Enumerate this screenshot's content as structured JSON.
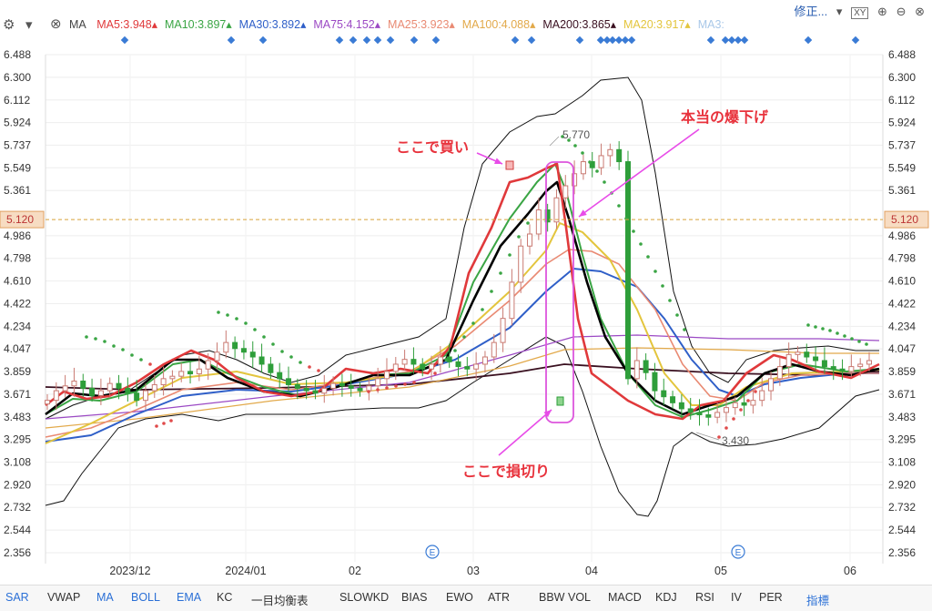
{
  "toolbar": {
    "indicator_name": "MA",
    "ma_legend": [
      {
        "label": "MA5:3.948",
        "color": "#e0393b"
      },
      {
        "label": "MA10:3.897",
        "color": "#3aa544"
      },
      {
        "label": "MA30:3.892",
        "color": "#2f5fc8"
      },
      {
        "label": "MA75:4.152",
        "color": "#9b49c4"
      },
      {
        "label": "MA25:3.923",
        "color": "#e98a73"
      },
      {
        "label": "MA100:4.088",
        "color": "#e2a94a"
      },
      {
        "label": "MA200:3.865",
        "color": "#3a1020"
      },
      {
        "label": "MA20:3.917",
        "color": "#e3c53d"
      },
      {
        "label": "MA3:",
        "color": "#a9c8e8"
      }
    ],
    "modify_label": "修正...",
    "gear_icon": "gear-icon",
    "collapse_icon": "chevron-down-icon",
    "close_icon": "close-icon"
  },
  "bottom_tabs": [
    "SAR",
    "VWAP",
    "MA",
    "BOLL",
    "EMA",
    "KC",
    "一目均衡表",
    "SLOWKD",
    "BIAS",
    "EWO",
    "ATR",
    "BBW",
    "VOL",
    "MACD",
    "KDJ",
    "RSI",
    "IV",
    "PER",
    "指標"
  ],
  "active_tabs": [
    "SAR",
    "MA",
    "BOLL",
    "EMA",
    "指標"
  ],
  "chart_data": {
    "type": "candlestick",
    "y_ticks": [
      2.356,
      2.544,
      2.732,
      2.92,
      3.108,
      3.295,
      3.483,
      3.671,
      3.859,
      4.047,
      4.234,
      4.422,
      4.61,
      4.798,
      4.986,
      5.361,
      5.549,
      5.737,
      5.924,
      6.112,
      6.3,
      6.488
    ],
    "ylim": [
      2.356,
      6.488
    ],
    "x_labels": [
      "2023/12",
      "2024/01",
      "02",
      "03",
      "04",
      "05",
      "06"
    ],
    "current_price": 5.12,
    "current_price_label": "5.120",
    "high_label": "5.770",
    "low_label": "3.430",
    "event_marker": "E",
    "annotations": [
      {
        "text": "ここで買い",
        "color": "#e8323c"
      },
      {
        "text": "本当の爆下げ",
        "color": "#e8323c"
      },
      {
        "text": "ここで損切り",
        "color": "#e8323c"
      }
    ],
    "series_close": [
      3.62,
      3.7,
      3.74,
      3.78,
      3.72,
      3.66,
      3.7,
      3.76,
      3.72,
      3.68,
      3.62,
      3.7,
      3.75,
      3.8,
      3.82,
      3.86,
      3.84,
      3.88,
      3.95,
      4.02,
      4.1,
      4.05,
      4.02,
      3.98,
      3.92,
      3.85,
      3.8,
      3.75,
      3.72,
      3.7,
      3.68,
      3.72,
      3.76,
      3.74,
      3.72,
      3.7,
      3.74,
      3.8,
      3.86,
      3.92,
      3.96,
      3.92,
      3.88,
      3.92,
      3.98,
      3.94,
      3.9,
      3.88,
      3.92,
      3.98,
      4.1,
      4.3,
      4.6,
      4.9,
      5.0,
      5.2,
      5.1,
      5.3,
      5.4,
      5.5,
      5.6,
      5.55,
      5.65,
      5.7,
      5.6,
      3.8,
      3.95,
      3.85,
      3.7,
      3.65,
      3.6,
      3.55,
      3.52,
      3.5,
      3.48,
      3.52,
      3.56,
      3.6,
      3.58,
      3.62,
      3.7,
      3.8,
      3.9,
      4.0,
      4.02,
      3.98,
      3.95,
      3.9,
      3.88,
      3.86,
      3.9,
      3.92,
      3.95
    ]
  }
}
